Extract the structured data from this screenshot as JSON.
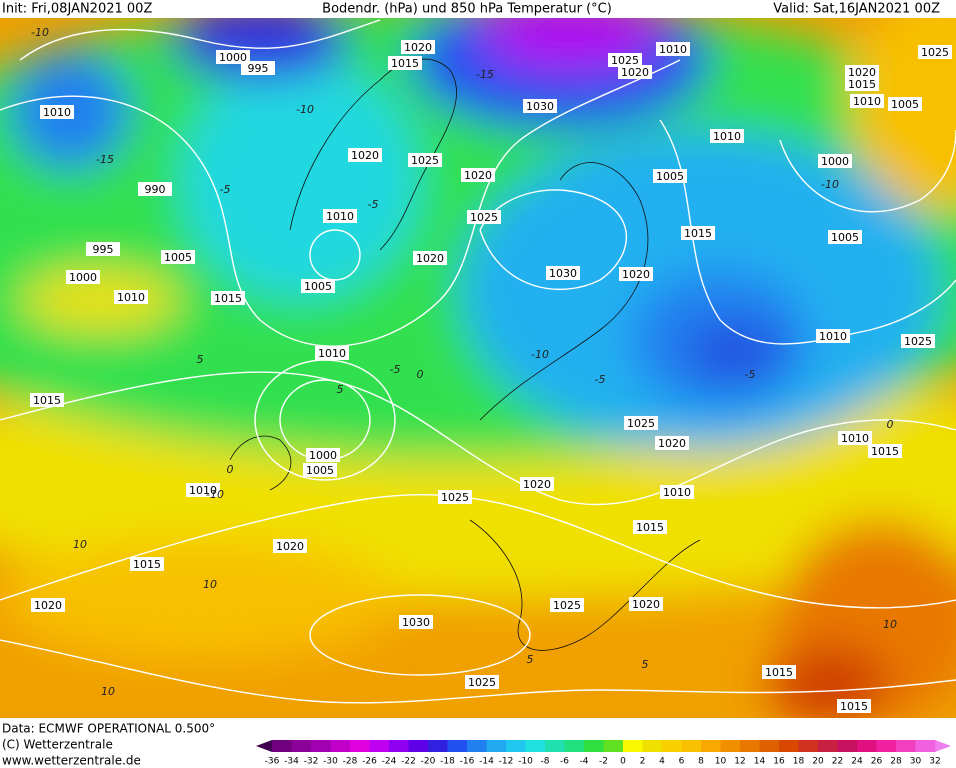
{
  "header": {
    "init": "Init: Fri,08JAN2021 00Z",
    "title": "Bodendr. (hPa) und 850 hPa Temperatur (°C)",
    "valid": "Valid: Sat,16JAN2021 00Z"
  },
  "map": {
    "pressure_labels": [
      "1000",
      "995",
      "1020",
      "1015",
      "1025",
      "1020",
      "1010",
      "1020",
      "1015",
      "1025",
      "1010",
      "1010",
      "1005",
      "1020",
      "1025",
      "1020",
      "1030",
      "1010",
      "1005",
      "1000",
      "990",
      "995",
      "1005",
      "1000",
      "1010",
      "1015",
      "1010",
      "1005",
      "1020",
      "1025",
      "1030",
      "1020",
      "1015",
      "1005",
      "1010",
      "1025",
      "1010",
      "1015",
      "1000",
      "1005",
      "1010",
      "1025",
      "1020",
      "1025",
      "1020",
      "1010",
      "1015",
      "1010",
      "1015",
      "1020",
      "1015",
      "1020",
      "1030",
      "1025",
      "1020",
      "1015",
      "1025",
      "1015"
    ],
    "temperature_labels": [
      "-10",
      "-15",
      "-5",
      "-10",
      "-15",
      "-10",
      "-5",
      "-10",
      "-5",
      "0",
      "5",
      "-5",
      "5",
      "-10",
      "0",
      "10",
      "10",
      "5",
      "10",
      "-5",
      "5",
      "10",
      "0"
    ]
  },
  "footer": {
    "source": "Data: ECMWF OPERATIONAL 0.500°",
    "copyright": "(C) Wetterzentrale",
    "url": "www.wetterzentrale.de"
  },
  "scale": {
    "ticks": [
      -36,
      -34,
      -32,
      -30,
      -28,
      -26,
      -24,
      -22,
      -20,
      -18,
      -16,
      -14,
      -12,
      -10,
      -8,
      -6,
      -4,
      -2,
      0,
      2,
      4,
      6,
      8,
      10,
      12,
      14,
      16,
      18,
      20,
      22,
      24,
      26,
      28,
      30,
      32
    ],
    "colors": [
      "#700080",
      "#8a0098",
      "#a000b0",
      "#c000c8",
      "#e000e0",
      "#c000f0",
      "#9000f0",
      "#6000e8",
      "#3020e0",
      "#2050f0",
      "#2080f0",
      "#20a8f0",
      "#20c8f0",
      "#20e0e0",
      "#20e0b0",
      "#20e080",
      "#30e040",
      "#60e020",
      "#f8f800",
      "#f0e000",
      "#f8d000",
      "#f8c000",
      "#f8a800",
      "#f09000",
      "#e87800",
      "#e06000",
      "#d84800",
      "#d03020",
      "#c82040",
      "#c81060",
      "#e01080",
      "#f020a0",
      "#f040c0",
      "#f060e0"
    ],
    "under_color": "#400050",
    "over_color": "#f080f0"
  }
}
